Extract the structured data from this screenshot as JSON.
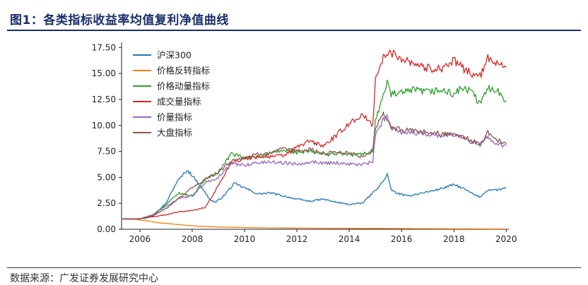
{
  "figure": {
    "title": "图1：各类指标收益率均值复利净值曲线",
    "source": "数据来源：广发证券发展研究中心"
  },
  "chart_data": {
    "type": "line",
    "title": "",
    "xlabel": "",
    "ylabel": "",
    "xlim": [
      2005.3,
      2020.1
    ],
    "ylim": [
      0,
      18
    ],
    "x_ticks": [
      2006,
      2008,
      2010,
      2012,
      2014,
      2016,
      2018,
      2020
    ],
    "x_tick_labels": [
      "2006",
      "2008",
      "2010",
      "2012",
      "2014",
      "2016",
      "2018",
      "2020"
    ],
    "y_ticks": [
      0,
      2.5,
      5,
      7.5,
      10,
      12.5,
      15,
      17.5
    ],
    "y_tick_labels": [
      "0.00",
      "2.50",
      "5.00",
      "7.50",
      "10.00",
      "12.50",
      "15.00",
      "17.50"
    ],
    "grid": false,
    "legend_position": "top-left",
    "series": [
      {
        "name": "沪深300",
        "color": "#1f77b4",
        "points": [
          [
            2005.3,
            1.0
          ],
          [
            2006.0,
            1.0
          ],
          [
            2006.5,
            1.3
          ],
          [
            2007.0,
            2.5
          ],
          [
            2007.4,
            4.5
          ],
          [
            2007.8,
            5.7
          ],
          [
            2008.0,
            5.2
          ],
          [
            2008.3,
            4.2
          ],
          [
            2008.7,
            2.8
          ],
          [
            2008.9,
            2.6
          ],
          [
            2009.2,
            3.2
          ],
          [
            2009.6,
            4.4
          ],
          [
            2010.0,
            4.0
          ],
          [
            2010.5,
            3.4
          ],
          [
            2011.0,
            3.5
          ],
          [
            2011.5,
            3.2
          ],
          [
            2012.0,
            2.9
          ],
          [
            2012.5,
            2.7
          ],
          [
            2013.0,
            2.9
          ],
          [
            2013.5,
            2.6
          ],
          [
            2014.0,
            2.4
          ],
          [
            2014.5,
            2.5
          ],
          [
            2014.9,
            3.5
          ],
          [
            2015.3,
            4.6
          ],
          [
            2015.45,
            5.3
          ],
          [
            2015.6,
            3.8
          ],
          [
            2015.8,
            3.5
          ],
          [
            2016.2,
            3.2
          ],
          [
            2016.6,
            3.4
          ],
          [
            2017.0,
            3.6
          ],
          [
            2017.5,
            3.9
          ],
          [
            2018.0,
            4.3
          ],
          [
            2018.3,
            4.0
          ],
          [
            2018.8,
            3.3
          ],
          [
            2019.0,
            3.1
          ],
          [
            2019.3,
            3.8
          ],
          [
            2019.7,
            3.8
          ],
          [
            2020.0,
            4.0
          ]
        ]
      },
      {
        "name": "价格反转指标",
        "color": "#ff7f0e",
        "points": [
          [
            2005.3,
            1.0
          ],
          [
            2005.8,
            0.95
          ],
          [
            2006.3,
            0.8
          ],
          [
            2006.8,
            0.6
          ],
          [
            2007.5,
            0.45
          ],
          [
            2008.2,
            0.3
          ],
          [
            2009.0,
            0.22
          ],
          [
            2010.0,
            0.17
          ],
          [
            2011.0,
            0.13
          ],
          [
            2012.0,
            0.11
          ],
          [
            2013.0,
            0.1
          ],
          [
            2014.0,
            0.09
          ],
          [
            2015.0,
            0.08
          ],
          [
            2016.0,
            0.07
          ],
          [
            2017.0,
            0.06
          ],
          [
            2018.0,
            0.05
          ],
          [
            2019.0,
            0.04
          ],
          [
            2020.0,
            0.03
          ]
        ]
      },
      {
        "name": "价格动量指标",
        "color": "#2ca02c",
        "points": [
          [
            2005.3,
            1.0
          ],
          [
            2006.0,
            1.0
          ],
          [
            2006.5,
            1.4
          ],
          [
            2007.0,
            2.4
          ],
          [
            2007.5,
            3.5
          ],
          [
            2008.0,
            3.2
          ],
          [
            2008.5,
            4.8
          ],
          [
            2009.0,
            5.5
          ],
          [
            2009.5,
            7.3
          ],
          [
            2010.0,
            6.8
          ],
          [
            2010.5,
            7.0
          ],
          [
            2011.0,
            7.3
          ],
          [
            2011.5,
            7.6
          ],
          [
            2012.0,
            7.4
          ],
          [
            2012.5,
            7.5
          ],
          [
            2013.0,
            7.2
          ],
          [
            2013.5,
            7.3
          ],
          [
            2014.0,
            7.2
          ],
          [
            2014.5,
            7.2
          ],
          [
            2014.9,
            7.6
          ],
          [
            2015.0,
            10.5
          ],
          [
            2015.3,
            12.8
          ],
          [
            2015.45,
            14.2
          ],
          [
            2015.6,
            13.0
          ],
          [
            2016.0,
            13.1
          ],
          [
            2016.5,
            13.4
          ],
          [
            2017.0,
            13.2
          ],
          [
            2017.5,
            13.4
          ],
          [
            2018.0,
            13.0
          ],
          [
            2018.3,
            13.6
          ],
          [
            2018.7,
            13.2
          ],
          [
            2019.0,
            12.0
          ],
          [
            2019.3,
            13.6
          ],
          [
            2019.6,
            13.5
          ],
          [
            2020.0,
            12.4
          ]
        ]
      },
      {
        "name": "成交量指标",
        "color": "#d62728",
        "points": [
          [
            2005.3,
            1.0
          ],
          [
            2006.0,
            1.0
          ],
          [
            2006.5,
            1.2
          ],
          [
            2007.0,
            1.4
          ],
          [
            2007.5,
            1.7
          ],
          [
            2008.0,
            1.8
          ],
          [
            2008.5,
            2.1
          ],
          [
            2009.0,
            4.2
          ],
          [
            2009.5,
            6.5
          ],
          [
            2010.0,
            6.8
          ],
          [
            2010.5,
            7.0
          ],
          [
            2011.0,
            7.0
          ],
          [
            2011.5,
            7.1
          ],
          [
            2012.0,
            7.9
          ],
          [
            2012.5,
            8.5
          ],
          [
            2013.0,
            8.0
          ],
          [
            2013.5,
            9.0
          ],
          [
            2014.0,
            10.2
          ],
          [
            2014.5,
            11.0
          ],
          [
            2014.9,
            10.0
          ],
          [
            2015.0,
            14.5
          ],
          [
            2015.3,
            16.5
          ],
          [
            2015.6,
            17.0
          ],
          [
            2016.0,
            16.5
          ],
          [
            2016.5,
            16.0
          ],
          [
            2017.0,
            15.5
          ],
          [
            2017.5,
            15.5
          ],
          [
            2018.0,
            16.2
          ],
          [
            2018.3,
            15.6
          ],
          [
            2018.7,
            15.0
          ],
          [
            2019.0,
            14.7
          ],
          [
            2019.3,
            16.4
          ],
          [
            2019.6,
            16.2
          ],
          [
            2020.0,
            15.6
          ]
        ]
      },
      {
        "name": "价量指标",
        "color": "#9467bd",
        "points": [
          [
            2005.3,
            1.0
          ],
          [
            2006.0,
            1.0
          ],
          [
            2006.5,
            1.4
          ],
          [
            2007.0,
            2.2
          ],
          [
            2007.5,
            3.0
          ],
          [
            2008.0,
            3.2
          ],
          [
            2008.5,
            4.5
          ],
          [
            2009.0,
            5.0
          ],
          [
            2009.5,
            6.3
          ],
          [
            2010.0,
            6.2
          ],
          [
            2010.5,
            6.4
          ],
          [
            2011.0,
            6.5
          ],
          [
            2011.5,
            6.4
          ],
          [
            2012.0,
            6.3
          ],
          [
            2012.5,
            6.5
          ],
          [
            2013.0,
            6.4
          ],
          [
            2013.5,
            6.4
          ],
          [
            2014.0,
            6.3
          ],
          [
            2014.5,
            6.2
          ],
          [
            2014.9,
            6.5
          ],
          [
            2015.0,
            9.0
          ],
          [
            2015.3,
            10.5
          ],
          [
            2015.45,
            11.0
          ],
          [
            2015.6,
            9.8
          ],
          [
            2016.0,
            9.4
          ],
          [
            2016.5,
            9.3
          ],
          [
            2017.0,
            9.2
          ],
          [
            2017.5,
            9.0
          ],
          [
            2018.0,
            9.1
          ],
          [
            2018.3,
            9.0
          ],
          [
            2018.7,
            8.4
          ],
          [
            2019.0,
            8.3
          ],
          [
            2019.3,
            9.0
          ],
          [
            2019.6,
            8.2
          ],
          [
            2020.0,
            8.1
          ]
        ]
      },
      {
        "name": "大盘指标",
        "color": "#8c564b",
        "points": [
          [
            2005.3,
            1.0
          ],
          [
            2006.0,
            1.0
          ],
          [
            2006.5,
            1.3
          ],
          [
            2007.0,
            2.0
          ],
          [
            2007.5,
            3.0
          ],
          [
            2008.0,
            4.0
          ],
          [
            2008.5,
            4.8
          ],
          [
            2009.0,
            5.5
          ],
          [
            2009.5,
            6.6
          ],
          [
            2010.0,
            6.9
          ],
          [
            2010.5,
            7.2
          ],
          [
            2011.0,
            7.4
          ],
          [
            2011.5,
            7.7
          ],
          [
            2012.0,
            7.5
          ],
          [
            2012.5,
            7.7
          ],
          [
            2013.0,
            7.3
          ],
          [
            2013.5,
            7.5
          ],
          [
            2014.0,
            7.3
          ],
          [
            2014.5,
            7.0
          ],
          [
            2014.9,
            7.5
          ],
          [
            2015.0,
            9.8
          ],
          [
            2015.3,
            11.0
          ],
          [
            2015.45,
            10.5
          ],
          [
            2015.6,
            9.8
          ],
          [
            2016.0,
            9.6
          ],
          [
            2016.5,
            9.4
          ],
          [
            2017.0,
            9.3
          ],
          [
            2017.5,
            9.2
          ],
          [
            2018.0,
            9.2
          ],
          [
            2018.3,
            9.0
          ],
          [
            2018.7,
            8.5
          ],
          [
            2019.0,
            8.2
          ],
          [
            2019.3,
            9.3
          ],
          [
            2019.6,
            8.7
          ],
          [
            2020.0,
            8.2
          ]
        ]
      }
    ]
  }
}
